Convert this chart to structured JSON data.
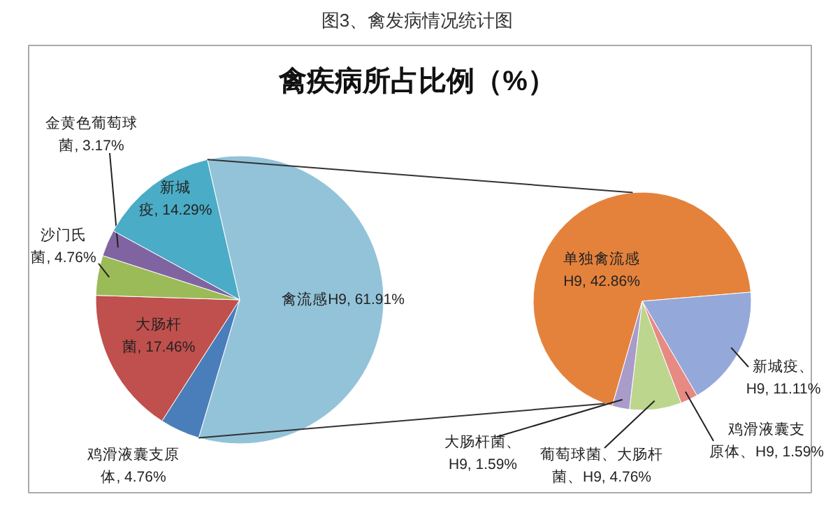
{
  "chart_data": [
    {
      "type": "pie",
      "title": "图3、禽发病情况统计图",
      "subtitle": "禽疾病所占比例（%）",
      "categories": [
        "禽流感H9",
        "鸡滑液囊支原体",
        "大肠杆菌",
        "沙门氏菌",
        "金黄色葡萄球菌",
        "新城疫"
      ],
      "values": [
        61.91,
        4.76,
        17.46,
        4.76,
        3.17,
        14.29
      ],
      "value_labels": [
        "61.91%",
        "4.76%",
        "17.46%",
        "4.76%",
        "3.17%",
        "14.29%"
      ],
      "colors": [
        "#93c3d9",
        "#4a7ebb",
        "#c0504d",
        "#9bbb59",
        "#8064a2",
        "#4aacc6"
      ]
    },
    {
      "type": "pie",
      "categories": [
        "单独禽流感H9",
        "新城疫、H9",
        "鸡滑液囊支原体、H9",
        "葡萄球菌、大肠杆菌、H9",
        "大肠杆菌、H9"
      ],
      "values": [
        42.86,
        11.11,
        1.59,
        4.76,
        1.59
      ],
      "value_labels": [
        "42.86%",
        "11.11%",
        "1.59%",
        "4.76%",
        "1.59%"
      ],
      "colors": [
        "#e4823c",
        "#94a9d9",
        "#e88a84",
        "#bcd68e",
        "#a99ccb"
      ]
    }
  ]
}
